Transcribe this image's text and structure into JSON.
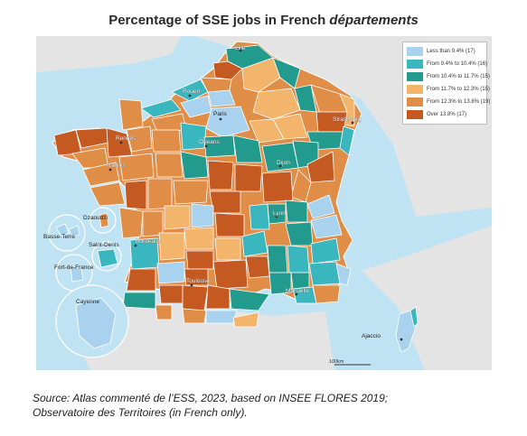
{
  "title": {
    "prefix": "Percentage of SSE jobs in French ",
    "emphasis": "départements"
  },
  "colors": {
    "sea": "#bfe3f3",
    "land_outside": "#e4e4e4",
    "border": "#ffffff",
    "class1": "#a9d2ee",
    "class2": "#3ab7be",
    "class3": "#229a8e",
    "class4": "#f3b46b",
    "class5": "#e08d48",
    "class6": "#c45a22"
  },
  "legend": [
    {
      "label": "Less than 9.4% (17)",
      "color": "#a9d2ee"
    },
    {
      "label": "From 9.4% to 10.4% (16)",
      "color": "#3ab7be"
    },
    {
      "label": "From 10.4% to 11.7% (15)",
      "color": "#229a8e"
    },
    {
      "label": "From 11.7% to 12.3% (15)",
      "color": "#f3b46b"
    },
    {
      "label": "From 12.3% to 13.8% (19)",
      "color": "#e08d48"
    },
    {
      "label": "Over 13.8% (17)",
      "color": "#c45a22"
    }
  ],
  "cities": {
    "lille": "Lille",
    "rouen": "Rouen",
    "paris": "Paris",
    "strasbourg": "Strasbourg",
    "rennes": "Rennes",
    "orleans": "Orléans",
    "nantes": "Nantes",
    "dijon": "Dijon",
    "lyon": "Lyon",
    "bordeaux": "Bordeaux",
    "toulouse": "Toulouse",
    "marseille": "Marseille",
    "ajaccio": "Ajaccio"
  },
  "overseas": {
    "dzaoudzi": "Dzaoudzi",
    "basse_terre": "Basse-Terre",
    "saint_denis": "Saint-Denis",
    "fort_de_france": "Fort-de-France",
    "cayenne": "Cayenne"
  },
  "scale": "100km",
  "source": {
    "line1": "Source: Atlas commenté de l’ESS, 2023, based on INSEE FLORES 2019;",
    "line2": "Observatoire des Territoires (in French only)."
  }
}
